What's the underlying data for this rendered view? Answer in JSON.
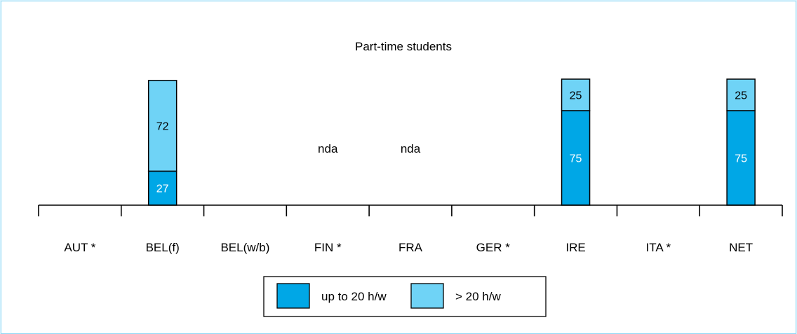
{
  "chart_data": {
    "type": "bar",
    "stacked": true,
    "title": "Part-time students",
    "categories": [
      "AUT *",
      "BEL(f)",
      "BEL(w/b)",
      "FIN *",
      "FRA",
      "GER *",
      "IRE",
      "ITA *",
      "NET"
    ],
    "series": [
      {
        "name": "up to 20 h/w",
        "color": "#00a7e6",
        "values": [
          null,
          27,
          null,
          null,
          null,
          null,
          75,
          null,
          75
        ]
      },
      {
        "name": "> 20 h/w",
        "color": "#6fd3f6",
        "values": [
          null,
          72,
          null,
          null,
          null,
          null,
          25,
          null,
          25
        ]
      }
    ],
    "annotations": [
      {
        "category": "FIN *",
        "text": "nda"
      },
      {
        "category": "FRA",
        "text": "nda"
      }
    ],
    "ylim": [
      0,
      100
    ],
    "grid": false,
    "legend_position": "bottom-center"
  }
}
